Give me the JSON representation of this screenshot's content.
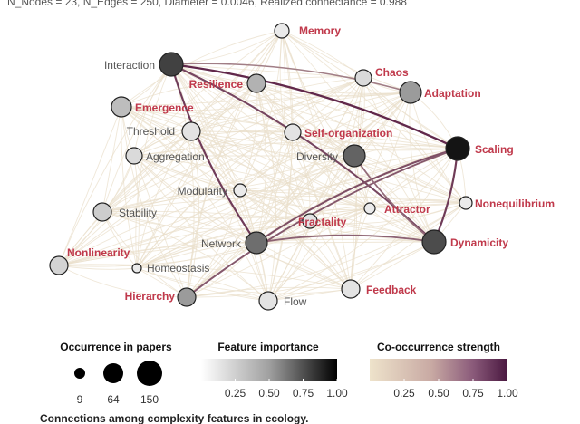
{
  "header": {
    "stats_text": "N_Nodes = 23, N_Edges = 250, Diameter = 0.0046, Realized connectance = 0.988"
  },
  "legend": {
    "occurrence": {
      "title": "Occurrence in papers",
      "values": [
        "9",
        "64",
        "150"
      ]
    },
    "importance": {
      "title": "Feature importance",
      "ticks": [
        "0.25",
        "0.50",
        "0.75",
        "1.00"
      ]
    },
    "cooccurrence": {
      "title": "Co-occurrence strength",
      "ticks": [
        "0.25",
        "0.50",
        "0.75",
        "1.00"
      ]
    }
  },
  "caption": "Connections among complexity features in ecology.",
  "colors": {
    "highlight_label": "#c0394b",
    "plain_label": "#555555",
    "edge_weak": "#e8dcc6",
    "edge_strong": "#5a1f45"
  },
  "network": {
    "nodes": [
      {
        "id": "memory",
        "label": "Memory",
        "highlight": true,
        "importance": 0.05
      },
      {
        "id": "interaction",
        "label": "Interaction",
        "highlight": false,
        "importance": 0.8
      },
      {
        "id": "chaos",
        "label": "Chaos",
        "highlight": true,
        "importance": 0.12
      },
      {
        "id": "resilience",
        "label": "Resilience",
        "highlight": true,
        "importance": 0.3
      },
      {
        "id": "adaptation",
        "label": "Adaptation",
        "highlight": true,
        "importance": 0.4
      },
      {
        "id": "emergence",
        "label": "Emergence",
        "highlight": true,
        "importance": 0.25
      },
      {
        "id": "threshold",
        "label": "Threshold",
        "highlight": false,
        "importance": 0.08
      },
      {
        "id": "selforg",
        "label": "Self-organization",
        "highlight": true,
        "importance": 0.08
      },
      {
        "id": "scaling",
        "label": "Scaling",
        "highlight": true,
        "importance": 1.0
      },
      {
        "id": "aggregation",
        "label": "Aggregation",
        "highlight": false,
        "importance": 0.12
      },
      {
        "id": "diversity",
        "label": "Diversity",
        "highlight": false,
        "importance": 0.65
      },
      {
        "id": "modularity",
        "label": "Modularity",
        "highlight": false,
        "importance": 0.05
      },
      {
        "id": "nonequilibrium",
        "label": "Nonequilibrium",
        "highlight": true,
        "importance": 0.05
      },
      {
        "id": "stability",
        "label": "Stability",
        "highlight": false,
        "importance": 0.18
      },
      {
        "id": "attractor",
        "label": "Attractor",
        "highlight": true,
        "importance": 0.05
      },
      {
        "id": "fractality",
        "label": "Fractality",
        "highlight": true,
        "importance": 0.08
      },
      {
        "id": "network",
        "label": "Network",
        "highlight": false,
        "importance": 0.6
      },
      {
        "id": "dynamicity",
        "label": "Dynamicity",
        "highlight": true,
        "importance": 0.75
      },
      {
        "id": "nonlinearity",
        "label": "Nonlinearity",
        "highlight": true,
        "importance": 0.15
      },
      {
        "id": "homeostasis",
        "label": "Homeostasis",
        "highlight": false,
        "importance": 0.05
      },
      {
        "id": "hierarchy",
        "label": "Hierarchy",
        "highlight": true,
        "importance": 0.4
      },
      {
        "id": "flow",
        "label": "Flow",
        "highlight": false,
        "importance": 0.08
      },
      {
        "id": "feedback",
        "label": "Feedback",
        "highlight": true,
        "importance": 0.08
      }
    ],
    "strong_edges": [
      {
        "from": "interaction",
        "to": "scaling",
        "strength": 0.95
      },
      {
        "from": "interaction",
        "to": "network",
        "strength": 0.85
      },
      {
        "from": "interaction",
        "to": "dynamicity",
        "strength": 0.8
      },
      {
        "from": "scaling",
        "to": "network",
        "strength": 0.75
      },
      {
        "from": "scaling",
        "to": "dynamicity",
        "strength": 0.85
      },
      {
        "from": "scaling",
        "to": "hierarchy",
        "strength": 0.7
      },
      {
        "from": "network",
        "to": "dynamicity",
        "strength": 0.65
      },
      {
        "from": "diversity",
        "to": "dynamicity",
        "strength": 0.6
      },
      {
        "from": "interaction",
        "to": "adaptation",
        "strength": 0.5
      }
    ]
  }
}
